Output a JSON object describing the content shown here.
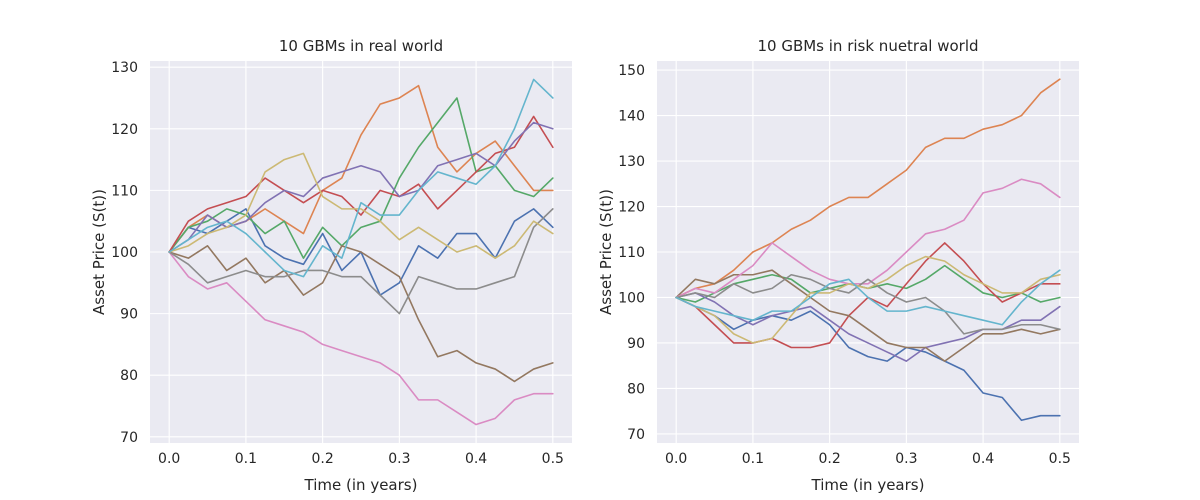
{
  "colors": [
    "#4c72b0",
    "#dd8452",
    "#55a868",
    "#c44e52",
    "#8172b3",
    "#937860",
    "#da8bc3",
    "#8c8c8c",
    "#ccb974",
    "#64b5cd"
  ],
  "chart_data": [
    {
      "type": "line",
      "title": "10 GBMs in real world",
      "xlabel": "Time (in years)",
      "ylabel": "Asset Price (S(t))",
      "xlim": [
        -0.025,
        0.525
      ],
      "ylim": [
        69,
        131
      ],
      "xticks": [
        0.0,
        0.1,
        0.2,
        0.3,
        0.4,
        0.5
      ],
      "xtick_labels": [
        "0.0",
        "0.1",
        "0.2",
        "0.3",
        "0.4",
        "0.5"
      ],
      "yticks": [
        70,
        80,
        90,
        100,
        110,
        120,
        130
      ],
      "ytick_labels": [
        "70",
        "80",
        "90",
        "100",
        "110",
        "120",
        "130"
      ],
      "grid": true,
      "legend": "none",
      "x": [
        0,
        0.025,
        0.05,
        0.075,
        0.1,
        0.125,
        0.15,
        0.175,
        0.2,
        0.225,
        0.25,
        0.275,
        0.3,
        0.325,
        0.35,
        0.375,
        0.4,
        0.425,
        0.45,
        0.475,
        0.5
      ],
      "series": [
        {
          "values": [
            100,
            104,
            103,
            105,
            107,
            101,
            99,
            98,
            103,
            97,
            100,
            93,
            95,
            101,
            99,
            103,
            103,
            99,
            105,
            107,
            104
          ]
        },
        {
          "values": [
            100,
            104,
            106,
            104,
            105,
            107,
            105,
            103,
            110,
            112,
            119,
            124,
            125,
            127,
            117,
            113,
            116,
            118,
            114,
            110,
            110
          ]
        },
        {
          "values": [
            100,
            104,
            105,
            107,
            106,
            103,
            105,
            99,
            104,
            101,
            104,
            105,
            112,
            117,
            121,
            125,
            113,
            114,
            110,
            109,
            112
          ]
        },
        {
          "values": [
            100,
            105,
            107,
            108,
            109,
            112,
            110,
            108,
            110,
            109,
            106,
            110,
            109,
            111,
            107,
            110,
            113,
            116,
            117,
            122,
            117
          ]
        },
        {
          "values": [
            100,
            102,
            106,
            104,
            105,
            108,
            110,
            109,
            112,
            113,
            114,
            113,
            109,
            110,
            114,
            115,
            116,
            114,
            118,
            121,
            120
          ]
        },
        {
          "values": [
            100,
            99,
            101,
            97,
            99,
            95,
            97,
            93,
            95,
            101,
            100,
            98,
            96,
            89,
            83,
            84,
            82,
            81,
            79,
            81,
            82
          ]
        },
        {
          "values": [
            100,
            96,
            94,
            95,
            92,
            89,
            88,
            87,
            85,
            84,
            83,
            82,
            80,
            76,
            76,
            74,
            72,
            73,
            76,
            77,
            77
          ]
        },
        {
          "values": [
            100,
            98,
            95,
            96,
            97,
            96,
            96,
            97,
            97,
            96,
            96,
            93,
            90,
            96,
            95,
            94,
            94,
            95,
            96,
            104,
            107
          ]
        },
        {
          "values": [
            100,
            101,
            103,
            104,
            106,
            113,
            115,
            116,
            109,
            107,
            107,
            105,
            102,
            104,
            102,
            100,
            101,
            99,
            101,
            105,
            103
          ]
        },
        {
          "values": [
            100,
            102,
            104,
            105,
            103,
            100,
            97,
            96,
            101,
            99,
            108,
            106,
            106,
            110,
            113,
            112,
            111,
            114,
            120,
            128,
            125
          ]
        }
      ]
    },
    {
      "type": "line",
      "title": "10 GBMs in risk nuetral world",
      "xlabel": "Time (in years)",
      "ylabel": "Asset Price (S(t))",
      "xlim": [
        -0.025,
        0.525
      ],
      "ylim": [
        68,
        152
      ],
      "xticks": [
        0.0,
        0.1,
        0.2,
        0.3,
        0.4,
        0.5
      ],
      "xtick_labels": [
        "0.0",
        "0.1",
        "0.2",
        "0.3",
        "0.4",
        "0.5"
      ],
      "yticks": [
        70,
        80,
        90,
        100,
        110,
        120,
        130,
        140,
        150
      ],
      "ytick_labels": [
        "70",
        "80",
        "90",
        "100",
        "110",
        "120",
        "130",
        "140",
        "150"
      ],
      "grid": true,
      "legend": "none",
      "x": [
        0,
        0.025,
        0.05,
        0.075,
        0.1,
        0.125,
        0.15,
        0.175,
        0.2,
        0.225,
        0.25,
        0.275,
        0.3,
        0.325,
        0.35,
        0.375,
        0.4,
        0.425,
        0.45,
        0.475,
        0.5
      ],
      "series": [
        {
          "values": [
            100,
            98,
            96,
            93,
            95,
            96,
            95,
            97,
            94,
            89,
            87,
            86,
            89,
            88,
            86,
            84,
            79,
            78,
            73,
            74,
            74
          ]
        },
        {
          "values": [
            100,
            102,
            103,
            106,
            110,
            112,
            115,
            117,
            120,
            122,
            122,
            125,
            128,
            133,
            135,
            135,
            137,
            138,
            140,
            145,
            148
          ]
        },
        {
          "values": [
            100,
            99,
            101,
            103,
            104,
            105,
            104,
            101,
            102,
            103,
            102,
            103,
            102,
            104,
            107,
            104,
            101,
            100,
            101,
            99,
            100
          ]
        },
        {
          "values": [
            100,
            98,
            94,
            90,
            90,
            91,
            89,
            89,
            90,
            96,
            100,
            98,
            103,
            108,
            112,
            108,
            103,
            99,
            101,
            103,
            103
          ]
        },
        {
          "values": [
            100,
            101,
            99,
            96,
            94,
            96,
            97,
            98,
            95,
            92,
            90,
            88,
            86,
            89,
            90,
            91,
            93,
            93,
            95,
            95,
            98
          ]
        },
        {
          "values": [
            100,
            104,
            103,
            105,
            105,
            106,
            103,
            100,
            97,
            96,
            93,
            90,
            89,
            89,
            86,
            89,
            92,
            92,
            93,
            92,
            93
          ]
        },
        {
          "values": [
            100,
            102,
            101,
            104,
            107,
            112,
            109,
            106,
            104,
            103,
            103,
            106,
            110,
            114,
            115,
            117,
            123,
            124,
            126,
            125,
            122
          ]
        },
        {
          "values": [
            100,
            101,
            100,
            103,
            101,
            102,
            105,
            104,
            102,
            101,
            104,
            101,
            99,
            100,
            97,
            92,
            93,
            93,
            94,
            94,
            93
          ]
        },
        {
          "values": [
            100,
            98,
            96,
            92,
            90,
            91,
            96,
            101,
            101,
            103,
            102,
            104,
            107,
            109,
            108,
            105,
            103,
            101,
            101,
            104,
            105
          ]
        },
        {
          "values": [
            100,
            98,
            97,
            96,
            95,
            97,
            97,
            100,
            103,
            104,
            100,
            97,
            97,
            98,
            97,
            96,
            95,
            94,
            99,
            103,
            106
          ]
        }
      ]
    }
  ]
}
